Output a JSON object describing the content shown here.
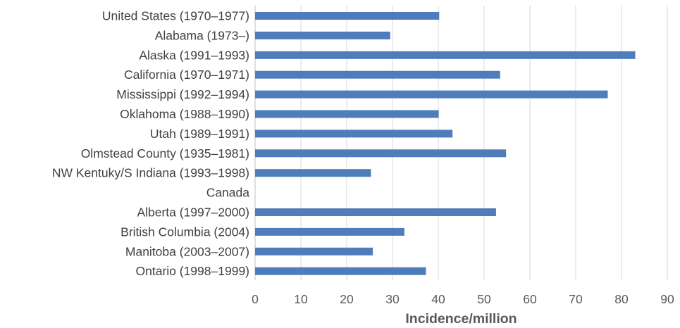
{
  "chart_data": {
    "type": "bar",
    "orientation": "horizontal",
    "categories": [
      "United States (1970–1977)",
      "Alabama (1973–)",
      "Alaska (1991–1993)",
      "California (1970–1971)",
      "Mississippi (1992–1994)",
      "Oklahoma (1988–1990)",
      "Utah (1989–1991)",
      "Olmstead County (1935–1981)",
      "NW Kentuky/S Indiana (1993–1998)",
      "Canada",
      "Alberta (1997–2000)",
      "British Columbia (2004)",
      "Manitoba (2003–2007)",
      "Ontario (1998–1999)"
    ],
    "values": [
      40.2,
      29.5,
      83.0,
      53.5,
      77.0,
      40.1,
      43.1,
      54.8,
      25.3,
      null,
      52.6,
      32.6,
      25.7,
      37.3
    ],
    "xlabel": "Incidence/million",
    "xlim": [
      0,
      90
    ],
    "xticks": [
      "0",
      "10",
      "20",
      "30",
      "40",
      "50",
      "60",
      "70",
      "80",
      "90"
    ],
    "grid": "vertical",
    "bar_color": "#4f7dbc"
  }
}
